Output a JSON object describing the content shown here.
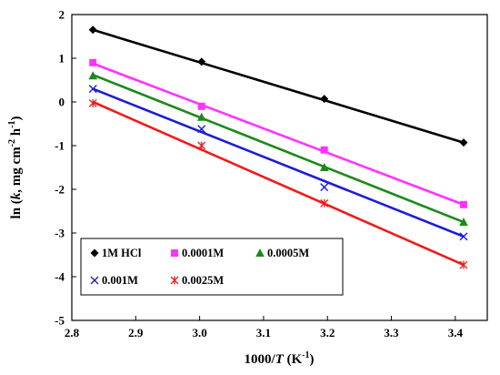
{
  "chart_data": {
    "type": "scatter",
    "xlabel_parts": [
      "1000/",
      "T",
      " (K",
      "-1",
      ")"
    ],
    "ylabel_parts": [
      "ln (",
      "k",
      ", mg cm",
      "-2",
      " h",
      "-1",
      ")"
    ],
    "xlim": [
      2.8,
      3.45
    ],
    "ylim": [
      -5,
      2
    ],
    "x_ticks": [
      "2.8",
      "2.9",
      "3.0",
      "3.1",
      "3.2",
      "3.3",
      "3.4"
    ],
    "y_ticks": [
      "2",
      "1",
      "0",
      "-1",
      "-2",
      "-3",
      "-4",
      "-5"
    ],
    "grid": false,
    "legend_position": "bottom-left",
    "x": [
      2.833,
      3.003,
      3.195,
      3.413
    ],
    "series": [
      {
        "name": "1M HCl",
        "marker": "diamond",
        "color": "#000000",
        "values": [
          1.65,
          0.92,
          0.07,
          -0.93
        ],
        "fit": [
          1.65,
          -0.93
        ]
      },
      {
        "name": "0.0001M",
        "marker": "square",
        "color": "#ff33ff",
        "values": [
          0.9,
          -0.1,
          -1.1,
          -2.35
        ],
        "fit": [
          0.88,
          -2.35
        ]
      },
      {
        "name": "0.0005M",
        "marker": "triangle",
        "color": "#1b8a1b",
        "values": [
          0.6,
          -0.35,
          -1.5,
          -2.75
        ],
        "fit": [
          0.62,
          -2.75
        ]
      },
      {
        "name": "0.001M",
        "marker": "x",
        "color": "#1c1cd8",
        "values": [
          0.3,
          -0.62,
          -1.95,
          -3.08
        ],
        "fit": [
          0.3,
          -3.08
        ]
      },
      {
        "name": "0.0025M",
        "marker": "star",
        "color": "#ee1c1c",
        "values": [
          -0.03,
          -1.0,
          -2.32,
          -3.73
        ],
        "fit": [
          0.0,
          -3.73
        ]
      }
    ]
  }
}
